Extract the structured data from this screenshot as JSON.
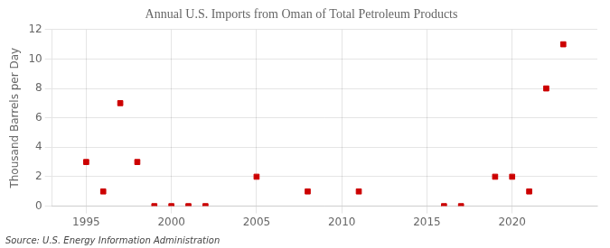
{
  "chart_data": {
    "type": "scatter",
    "title": "Annual U.S. Imports from Oman of Total Petroleum Products",
    "ylabel": "Thousand Barrels per Day",
    "annotation": "Source: U.S. Energy Information Administration",
    "x": [
      1995,
      1996,
      1997,
      1998,
      1999,
      2000,
      2001,
      2002,
      2005,
      2008,
      2011,
      2016,
      2017,
      2019,
      2020,
      2021,
      2022,
      2023
    ],
    "values": [
      3,
      1,
      7,
      3,
      0,
      0,
      0,
      0,
      2,
      1,
      1,
      0,
      0,
      2,
      2,
      1,
      8,
      11
    ],
    "color": "#cc0000",
    "marker": "square",
    "xlim": [
      1993,
      2025
    ],
    "xticks": [
      1995,
      2000,
      2005,
      2010,
      2015,
      2020
    ],
    "ylim": [
      0,
      12
    ],
    "yticks": [
      0,
      2,
      4,
      6,
      8,
      10,
      12
    ],
    "grid": true
  }
}
